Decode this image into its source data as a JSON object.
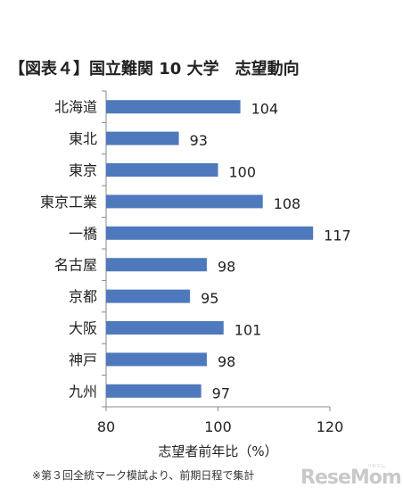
{
  "chart_data": {
    "type": "bar",
    "orientation": "horizontal",
    "title": "【図表４】国立難関 10 大学　志望動向",
    "categories": [
      "北海道",
      "東北",
      "東京",
      "東京工業",
      "一橋",
      "名古屋",
      "京都",
      "大阪",
      "神戸",
      "九州"
    ],
    "values": [
      104,
      93,
      100,
      108,
      117,
      98,
      95,
      101,
      98,
      97
    ],
    "xlabel": "志望者前年比（%）",
    "ylabel": "",
    "xlim": [
      80,
      120
    ],
    "xticks": [
      "80",
      "100",
      "120"
    ],
    "grid": false,
    "bar_color": "#4f79bd"
  },
  "footnote": "※第３回全統マーク模試より、前期日程で集計",
  "watermark": "ReseMom",
  "watermark_sub": "リセマム"
}
